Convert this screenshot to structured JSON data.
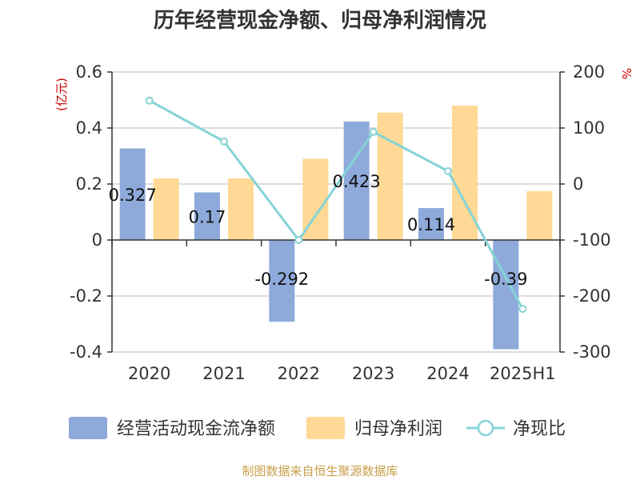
{
  "title": "历年经营现金净额、归母净利润情况",
  "source": "制图数据来自恒生聚源数据库",
  "left_unit": "(亿元)",
  "right_unit": "%",
  "colors": {
    "cash_flow": "#8eaadb",
    "net_profit": "#ffd995",
    "ratio": "#85d3d6"
  },
  "chart_data": {
    "type": "bar",
    "categories": [
      "2020",
      "2021",
      "2022",
      "2023",
      "2024",
      "2025H1"
    ],
    "series": [
      {
        "name": "经营活动现金流净额",
        "type": "bar",
        "axis": "left",
        "values": [
          0.327,
          0.17,
          -0.292,
          0.423,
          0.114,
          -0.39
        ],
        "labels": [
          "0.327",
          "0.17",
          "-0.292",
          "0.423",
          "0.114",
          "-0.39"
        ]
      },
      {
        "name": "归母净利润",
        "type": "bar",
        "axis": "left",
        "values": [
          0.22,
          0.22,
          0.29,
          0.455,
          0.48,
          0.175
        ]
      },
      {
        "name": "净现比",
        "type": "line",
        "axis": "right",
        "values": [
          149,
          76,
          -100,
          93,
          23,
          -223
        ]
      }
    ],
    "left_axis": {
      "min": -0.4,
      "max": 0.6,
      "ticks": [
        "0.6",
        "0.4",
        "0.2",
        "0",
        "-0.2",
        "-0.4"
      ]
    },
    "right_axis": {
      "min": -300,
      "max": 200,
      "ticks": [
        "200",
        "100",
        "0",
        "-100",
        "-200",
        "-300"
      ]
    },
    "grid": true,
    "legend_position": "bottom"
  }
}
